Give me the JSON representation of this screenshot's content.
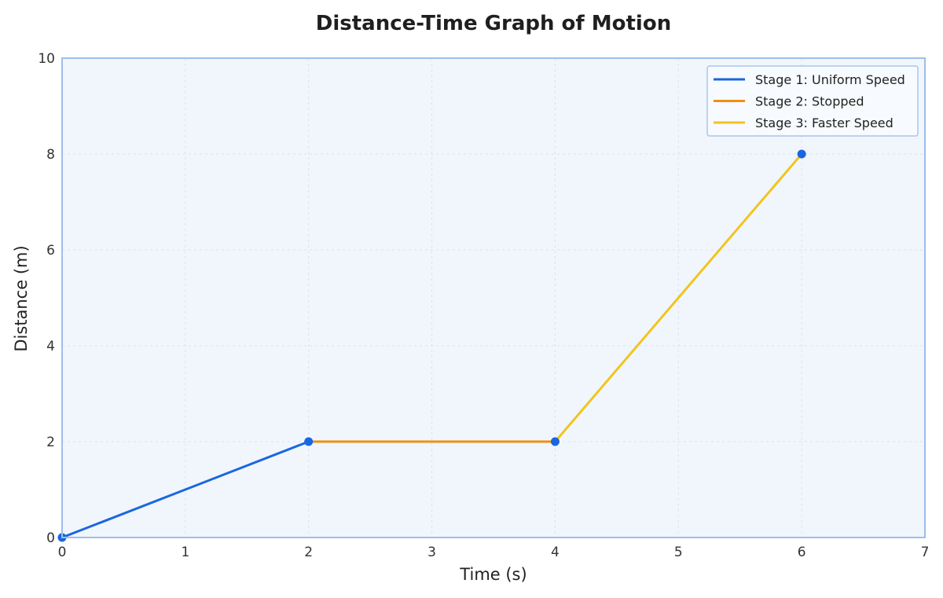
{
  "chart_data": {
    "type": "line",
    "title": "Distance-Time Graph of Motion",
    "xlabel": "Time (s)",
    "ylabel": "Distance (m)",
    "xlim": [
      0,
      7
    ],
    "ylim": [
      0,
      10
    ],
    "xticks": [
      "0",
      "1",
      "2",
      "3",
      "4",
      "5",
      "6",
      "7"
    ],
    "yticks": [
      "0",
      "2",
      "4",
      "6",
      "8",
      "10"
    ],
    "grid": true,
    "legend_position": "top-right",
    "series": [
      {
        "name": "Stage 1: Uniform Speed",
        "color": "#1a66e0",
        "x": [
          0,
          2
        ],
        "y": [
          0,
          2
        ]
      },
      {
        "name": "Stage 2: Stopped",
        "color": "#f0900f",
        "x": [
          2,
          4
        ],
        "y": [
          2,
          2
        ]
      },
      {
        "name": "Stage 3: Faster Speed",
        "color": "#f2c41f",
        "x": [
          4,
          6
        ],
        "y": [
          2,
          8
        ]
      }
    ],
    "markers": {
      "color": "#1a66e0",
      "x": [
        0,
        2,
        4,
        6
      ],
      "y": [
        0,
        2,
        2,
        8
      ]
    },
    "colors": {
      "plot_background": "#f1f6fc",
      "frame": "#9dbfec"
    }
  }
}
